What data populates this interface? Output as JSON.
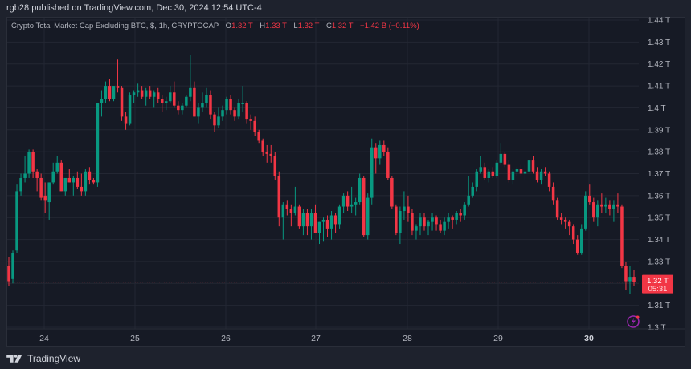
{
  "header": {
    "publisher_line": "rgb28 published on TradingView.com, Dec 30, 2024 12:54 UTC-4"
  },
  "legend": {
    "symbol": "Crypto Total Market Cap Excluding BTC, $, 1h, CRYPTOCAP",
    "open_label": "O",
    "open": "1.32 T",
    "high_label": "H",
    "high": "1.33 T",
    "low_label": "L",
    "low": "1.32 T",
    "close_label": "C",
    "close": "1.32 T",
    "change": "−1.42 B (−0.11%)"
  },
  "price_badge": {
    "price": "1.32 T",
    "countdown": "05:31",
    "color": "#f23645"
  },
  "footer": {
    "brand": "TradingView"
  },
  "icons": {
    "tv_logo": "tradingview-logo-icon",
    "lightning": "lightning-icon"
  },
  "colors": {
    "up": "#089981",
    "down": "#f23645",
    "background": "#161a25",
    "frame": "#1e222d",
    "grid": "#232733",
    "text": "#b2b5be"
  },
  "chart_data": {
    "type": "candlestick",
    "title": "Crypto Total Market Cap Excluding BTC, $, 1h, CRYPTOCAP",
    "xlabel": "",
    "ylabel": "",
    "ylim": [
      1.3,
      1.44
    ],
    "y_ticks": [
      "1.44 T",
      "1.43 T",
      "1.42 T",
      "1.41 T",
      "1.4 T",
      "1.39 T",
      "1.38 T",
      "1.37 T",
      "1.36 T",
      "1.35 T",
      "1.34 T",
      "1.33 T",
      "1.32 T",
      "1.31 T",
      "1.3 T"
    ],
    "x_ticks": [
      {
        "label": "24",
        "x": 55
      },
      {
        "label": "25",
        "x": 168
      },
      {
        "label": "26",
        "x": 281
      },
      {
        "label": "27",
        "x": 393
      },
      {
        "label": "28",
        "x": 507
      },
      {
        "label": "29",
        "x": 620
      },
      {
        "label": "30",
        "x": 733,
        "bold": true
      }
    ],
    "grid": true,
    "last_price": 1.3206,
    "units": "T (trillion USD)",
    "candles": [
      [
        1.328,
        1.332,
        1.319,
        1.321
      ],
      [
        1.322,
        1.335,
        1.32,
        1.334
      ],
      [
        1.335,
        1.365,
        1.334,
        1.362
      ],
      [
        1.362,
        1.37,
        1.36,
        1.368
      ],
      [
        1.368,
        1.378,
        1.366,
        1.37
      ],
      [
        1.37,
        1.381,
        1.368,
        1.38
      ],
      [
        1.38,
        1.381,
        1.368,
        1.371
      ],
      [
        1.371,
        1.372,
        1.362,
        1.368
      ],
      [
        1.368,
        1.37,
        1.358,
        1.359
      ],
      [
        1.36,
        1.366,
        1.352,
        1.358
      ],
      [
        1.357,
        1.366,
        1.349,
        1.366
      ],
      [
        1.366,
        1.375,
        1.365,
        1.371
      ],
      [
        1.371,
        1.378,
        1.37,
        1.375
      ],
      [
        1.375,
        1.376,
        1.362,
        1.362
      ],
      [
        1.362,
        1.368,
        1.36,
        1.368
      ],
      [
        1.368,
        1.372,
        1.366,
        1.366
      ],
      [
        1.366,
        1.369,
        1.36,
        1.368
      ],
      [
        1.368,
        1.371,
        1.363,
        1.364
      ],
      [
        1.364,
        1.37,
        1.36,
        1.362
      ],
      [
        1.362,
        1.372,
        1.36,
        1.371
      ],
      [
        1.371,
        1.373,
        1.365,
        1.367
      ],
      [
        1.367,
        1.368,
        1.365,
        1.366
      ],
      [
        1.366,
        1.402,
        1.364,
        1.402
      ],
      [
        1.402,
        1.408,
        1.396,
        1.404
      ],
      [
        1.404,
        1.412,
        1.402,
        1.41
      ],
      [
        1.41,
        1.413,
        1.403,
        1.404
      ],
      [
        1.404,
        1.41,
        1.403,
        1.41
      ],
      [
        1.41,
        1.422,
        1.407,
        1.409
      ],
      [
        1.409,
        1.41,
        1.394,
        1.396
      ],
      [
        1.396,
        1.398,
        1.39,
        1.393
      ],
      [
        1.393,
        1.407,
        1.392,
        1.406
      ],
      [
        1.406,
        1.408,
        1.402,
        1.407
      ],
      [
        1.407,
        1.411,
        1.405,
        1.408
      ],
      [
        1.408,
        1.41,
        1.404,
        1.405
      ],
      [
        1.405,
        1.409,
        1.401,
        1.408
      ],
      [
        1.408,
        1.41,
        1.404,
        1.405
      ],
      [
        1.405,
        1.408,
        1.4,
        1.407
      ],
      [
        1.407,
        1.409,
        1.402,
        1.404
      ],
      [
        1.404,
        1.406,
        1.398,
        1.402
      ],
      [
        1.402,
        1.405,
        1.399,
        1.403
      ],
      [
        1.403,
        1.41,
        1.402,
        1.407
      ],
      [
        1.407,
        1.412,
        1.4,
        1.401
      ],
      [
        1.401,
        1.403,
        1.397,
        1.399
      ],
      [
        1.399,
        1.402,
        1.397,
        1.401
      ],
      [
        1.401,
        1.406,
        1.4,
        1.405
      ],
      [
        1.405,
        1.424,
        1.403,
        1.409
      ],
      [
        1.409,
        1.412,
        1.396,
        1.396
      ],
      [
        1.396,
        1.402,
        1.393,
        1.4
      ],
      [
        1.4,
        1.407,
        1.398,
        1.402
      ],
      [
        1.402,
        1.409,
        1.4,
        1.406
      ],
      [
        1.406,
        1.408,
        1.395,
        1.397
      ],
      [
        1.397,
        1.398,
        1.389,
        1.392
      ],
      [
        1.392,
        1.4,
        1.391,
        1.396
      ],
      [
        1.396,
        1.401,
        1.394,
        1.399
      ],
      [
        1.399,
        1.405,
        1.397,
        1.404
      ],
      [
        1.404,
        1.406,
        1.397,
        1.399
      ],
      [
        1.399,
        1.4,
        1.394,
        1.396
      ],
      [
        1.396,
        1.404,
        1.395,
        1.402
      ],
      [
        1.402,
        1.41,
        1.398,
        1.402
      ],
      [
        1.402,
        1.403,
        1.393,
        1.395
      ],
      [
        1.395,
        1.397,
        1.39,
        1.394
      ],
      [
        1.394,
        1.396,
        1.387,
        1.389
      ],
      [
        1.389,
        1.39,
        1.384,
        1.385
      ],
      [
        1.385,
        1.386,
        1.378,
        1.38
      ],
      [
        1.38,
        1.383,
        1.375,
        1.379
      ],
      [
        1.379,
        1.383,
        1.375,
        1.378
      ],
      [
        1.378,
        1.38,
        1.367,
        1.369
      ],
      [
        1.369,
        1.371,
        1.346,
        1.35
      ],
      [
        1.35,
        1.357,
        1.34,
        1.356
      ],
      [
        1.356,
        1.358,
        1.351,
        1.354
      ],
      [
        1.354,
        1.356,
        1.346,
        1.352
      ],
      [
        1.352,
        1.364,
        1.351,
        1.355
      ],
      [
        1.355,
        1.356,
        1.345,
        1.346
      ],
      [
        1.346,
        1.354,
        1.342,
        1.352
      ],
      [
        1.352,
        1.354,
        1.342,
        1.346
      ],
      [
        1.346,
        1.354,
        1.34,
        1.352
      ],
      [
        1.352,
        1.356,
        1.343,
        1.343
      ],
      [
        1.343,
        1.348,
        1.338,
        1.348
      ],
      [
        1.348,
        1.35,
        1.339,
        1.349
      ],
      [
        1.349,
        1.351,
        1.341,
        1.345
      ],
      [
        1.345,
        1.353,
        1.34,
        1.351
      ],
      [
        1.351,
        1.352,
        1.343,
        1.347
      ],
      [
        1.347,
        1.356,
        1.345,
        1.355
      ],
      [
        1.355,
        1.361,
        1.352,
        1.36
      ],
      [
        1.36,
        1.362,
        1.353,
        1.355
      ],
      [
        1.355,
        1.364,
        1.352,
        1.356
      ],
      [
        1.356,
        1.359,
        1.351,
        1.357
      ],
      [
        1.357,
        1.37,
        1.356,
        1.368
      ],
      [
        1.368,
        1.369,
        1.341,
        1.342
      ],
      [
        1.342,
        1.361,
        1.34,
        1.359
      ],
      [
        1.359,
        1.386,
        1.356,
        1.382
      ],
      [
        1.382,
        1.384,
        1.37,
        1.377
      ],
      [
        1.377,
        1.385,
        1.374,
        1.383
      ],
      [
        1.383,
        1.385,
        1.378,
        1.38
      ],
      [
        1.38,
        1.382,
        1.367,
        1.368
      ],
      [
        1.368,
        1.369,
        1.354,
        1.355
      ],
      [
        1.355,
        1.356,
        1.342,
        1.343
      ],
      [
        1.343,
        1.355,
        1.338,
        1.353
      ],
      [
        1.353,
        1.362,
        1.349,
        1.355
      ],
      [
        1.355,
        1.36,
        1.348,
        1.352
      ],
      [
        1.352,
        1.354,
        1.342,
        1.344
      ],
      [
        1.344,
        1.347,
        1.34,
        1.346
      ],
      [
        1.346,
        1.352,
        1.342,
        1.35
      ],
      [
        1.35,
        1.352,
        1.344,
        1.346
      ],
      [
        1.346,
        1.349,
        1.342,
        1.348
      ],
      [
        1.348,
        1.352,
        1.344,
        1.35
      ],
      [
        1.35,
        1.351,
        1.344,
        1.347
      ],
      [
        1.347,
        1.349,
        1.343,
        1.344
      ],
      [
        1.344,
        1.35,
        1.342,
        1.348
      ],
      [
        1.348,
        1.352,
        1.345,
        1.35
      ],
      [
        1.35,
        1.351,
        1.345,
        1.349
      ],
      [
        1.349,
        1.353,
        1.347,
        1.352
      ],
      [
        1.352,
        1.354,
        1.348,
        1.351
      ],
      [
        1.351,
        1.357,
        1.349,
        1.356
      ],
      [
        1.356,
        1.369,
        1.355,
        1.36
      ],
      [
        1.36,
        1.366,
        1.359,
        1.364
      ],
      [
        1.364,
        1.372,
        1.362,
        1.371
      ],
      [
        1.371,
        1.378,
        1.37,
        1.373
      ],
      [
        1.373,
        1.375,
        1.367,
        1.368
      ],
      [
        1.368,
        1.372,
        1.366,
        1.371
      ],
      [
        1.371,
        1.373,
        1.368,
        1.369
      ],
      [
        1.369,
        1.376,
        1.368,
        1.375
      ],
      [
        1.375,
        1.384,
        1.374,
        1.379
      ],
      [
        1.379,
        1.38,
        1.373,
        1.374
      ],
      [
        1.374,
        1.376,
        1.366,
        1.367
      ],
      [
        1.367,
        1.372,
        1.365,
        1.371
      ],
      [
        1.371,
        1.373,
        1.369,
        1.372
      ],
      [
        1.372,
        1.374,
        1.369,
        1.37
      ],
      [
        1.37,
        1.374,
        1.367,
        1.371
      ],
      [
        1.371,
        1.377,
        1.37,
        1.376
      ],
      [
        1.376,
        1.378,
        1.37,
        1.371
      ],
      [
        1.371,
        1.373,
        1.366,
        1.367
      ],
      [
        1.367,
        1.372,
        1.365,
        1.371
      ],
      [
        1.371,
        1.373,
        1.369,
        1.37
      ],
      [
        1.37,
        1.371,
        1.362,
        1.364
      ],
      [
        1.364,
        1.366,
        1.356,
        1.358
      ],
      [
        1.358,
        1.359,
        1.349,
        1.35
      ],
      [
        1.35,
        1.352,
        1.347,
        1.349
      ],
      [
        1.349,
        1.35,
        1.345,
        1.348
      ],
      [
        1.348,
        1.349,
        1.342,
        1.346
      ],
      [
        1.346,
        1.347,
        1.338,
        1.34
      ],
      [
        1.34,
        1.342,
        1.333,
        1.334
      ],
      [
        1.334,
        1.347,
        1.333,
        1.345
      ],
      [
        1.345,
        1.362,
        1.344,
        1.36
      ],
      [
        1.36,
        1.365,
        1.356,
        1.357
      ],
      [
        1.357,
        1.359,
        1.348,
        1.35
      ],
      [
        1.35,
        1.358,
        1.346,
        1.356
      ],
      [
        1.356,
        1.361,
        1.352,
        1.355
      ],
      [
        1.355,
        1.359,
        1.352,
        1.356
      ],
      [
        1.356,
        1.358,
        1.351,
        1.354
      ],
      [
        1.354,
        1.358,
        1.348,
        1.356
      ],
      [
        1.356,
        1.361,
        1.352,
        1.355
      ],
      [
        1.355,
        1.356,
        1.327,
        1.328
      ],
      [
        1.328,
        1.33,
        1.317,
        1.321
      ],
      [
        1.321,
        1.328,
        1.315,
        1.323
      ],
      [
        1.323,
        1.326,
        1.319,
        1.3206
      ]
    ]
  }
}
